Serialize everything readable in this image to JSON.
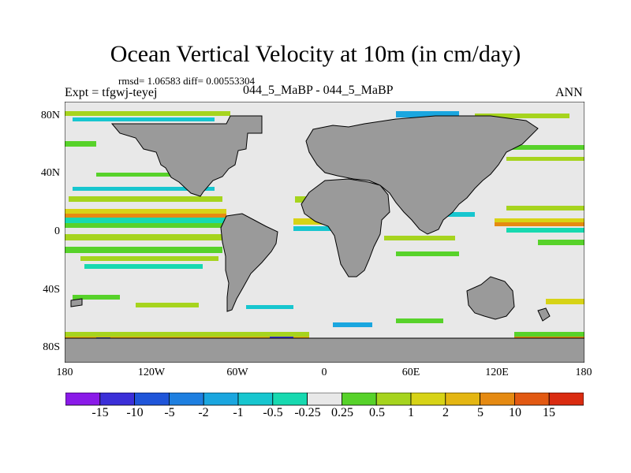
{
  "title": "Ocean Vertical Velocity at 10m (in cm/day)",
  "stats": "rmsd= 1.06583 diff= 0.00553304",
  "expt": "Expt = tfgwj-teyej",
  "case_label": "044_5_MaBP - 044_5_MaBP",
  "season": "ANN",
  "lat_ticks": [
    "80N",
    "40N",
    "0",
    "40S",
    "80S"
  ],
  "lon_ticks": [
    "180",
    "120W",
    "60W",
    "0",
    "60E",
    "120E",
    "180"
  ],
  "colorbar": {
    "labels": [
      "-15",
      "-10",
      "-5",
      "-2",
      "-1",
      "-0.5",
      "-0.25",
      "0.25",
      "0.5",
      "1",
      "2",
      "5",
      "10",
      "15"
    ],
    "colors": [
      "#8a1ae8",
      "#3b2fd8",
      "#1f55d9",
      "#1e7fe0",
      "#1aa6df",
      "#17c6cf",
      "#17d9b0",
      "#e8e8e8",
      "#57d22a",
      "#a6d41e",
      "#d7d316",
      "#e4b612",
      "#e58a12",
      "#e25912",
      "#da2b10"
    ]
  },
  "colors": {
    "land": "#9a9a9a",
    "ocean_near_zero": "#e8e8e8"
  }
}
